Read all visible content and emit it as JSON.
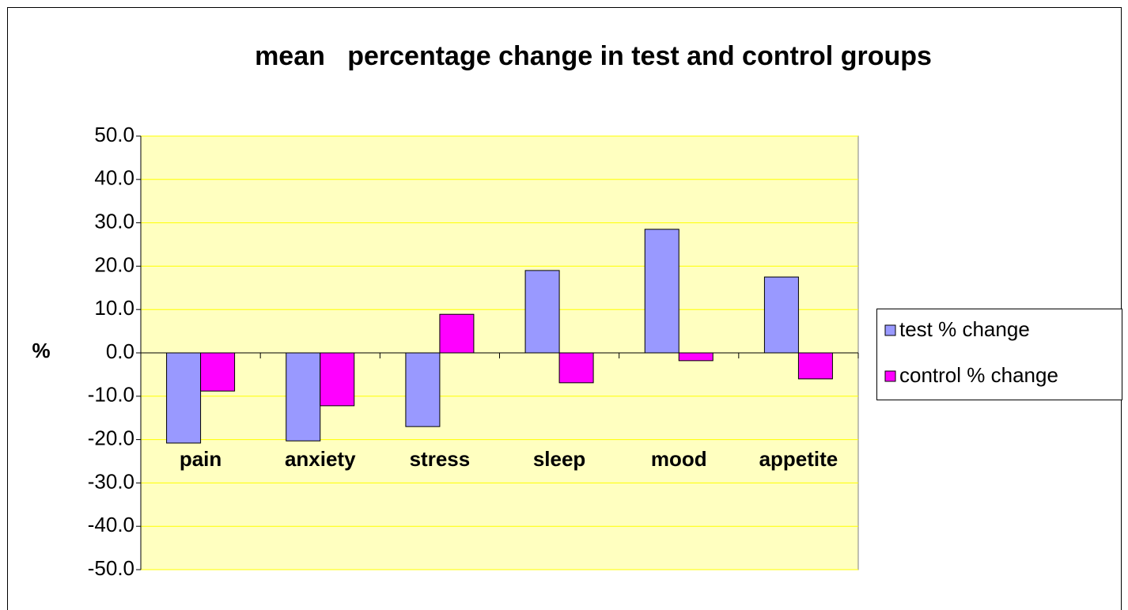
{
  "chart_data": {
    "type": "bar",
    "title": "mean   percentage change in test and control groups",
    "y_label": "%",
    "categories": [
      "pain",
      "anxiety",
      "stress",
      "sleep",
      "mood",
      "appetite"
    ],
    "series": [
      {
        "name": "test % change",
        "color": "#9999ff",
        "values": [
          -20.8,
          -20.3,
          -17.0,
          19.0,
          28.5,
          17.5
        ]
      },
      {
        "name": "control % change",
        "color": "#ff00ff",
        "values": [
          -8.8,
          -12.2,
          8.9,
          -6.9,
          -1.8,
          -6.0
        ]
      }
    ],
    "ylim": [
      -50,
      50
    ],
    "yticks": [
      {
        "value": -50,
        "label": "-50.0"
      },
      {
        "value": -40,
        "label": "-40.0"
      },
      {
        "value": -30,
        "label": "-30.0"
      },
      {
        "value": -20,
        "label": "-20.0"
      },
      {
        "value": -10,
        "label": "-10.0"
      },
      {
        "value": 0,
        "label": "0.0"
      },
      {
        "value": 10,
        "label": "10.0"
      },
      {
        "value": 20,
        "label": "20.0"
      },
      {
        "value": 30,
        "label": "30.0"
      },
      {
        "value": 40,
        "label": "40.0"
      },
      {
        "value": 50,
        "label": "50.0"
      }
    ],
    "grid": true,
    "legend": "right"
  }
}
